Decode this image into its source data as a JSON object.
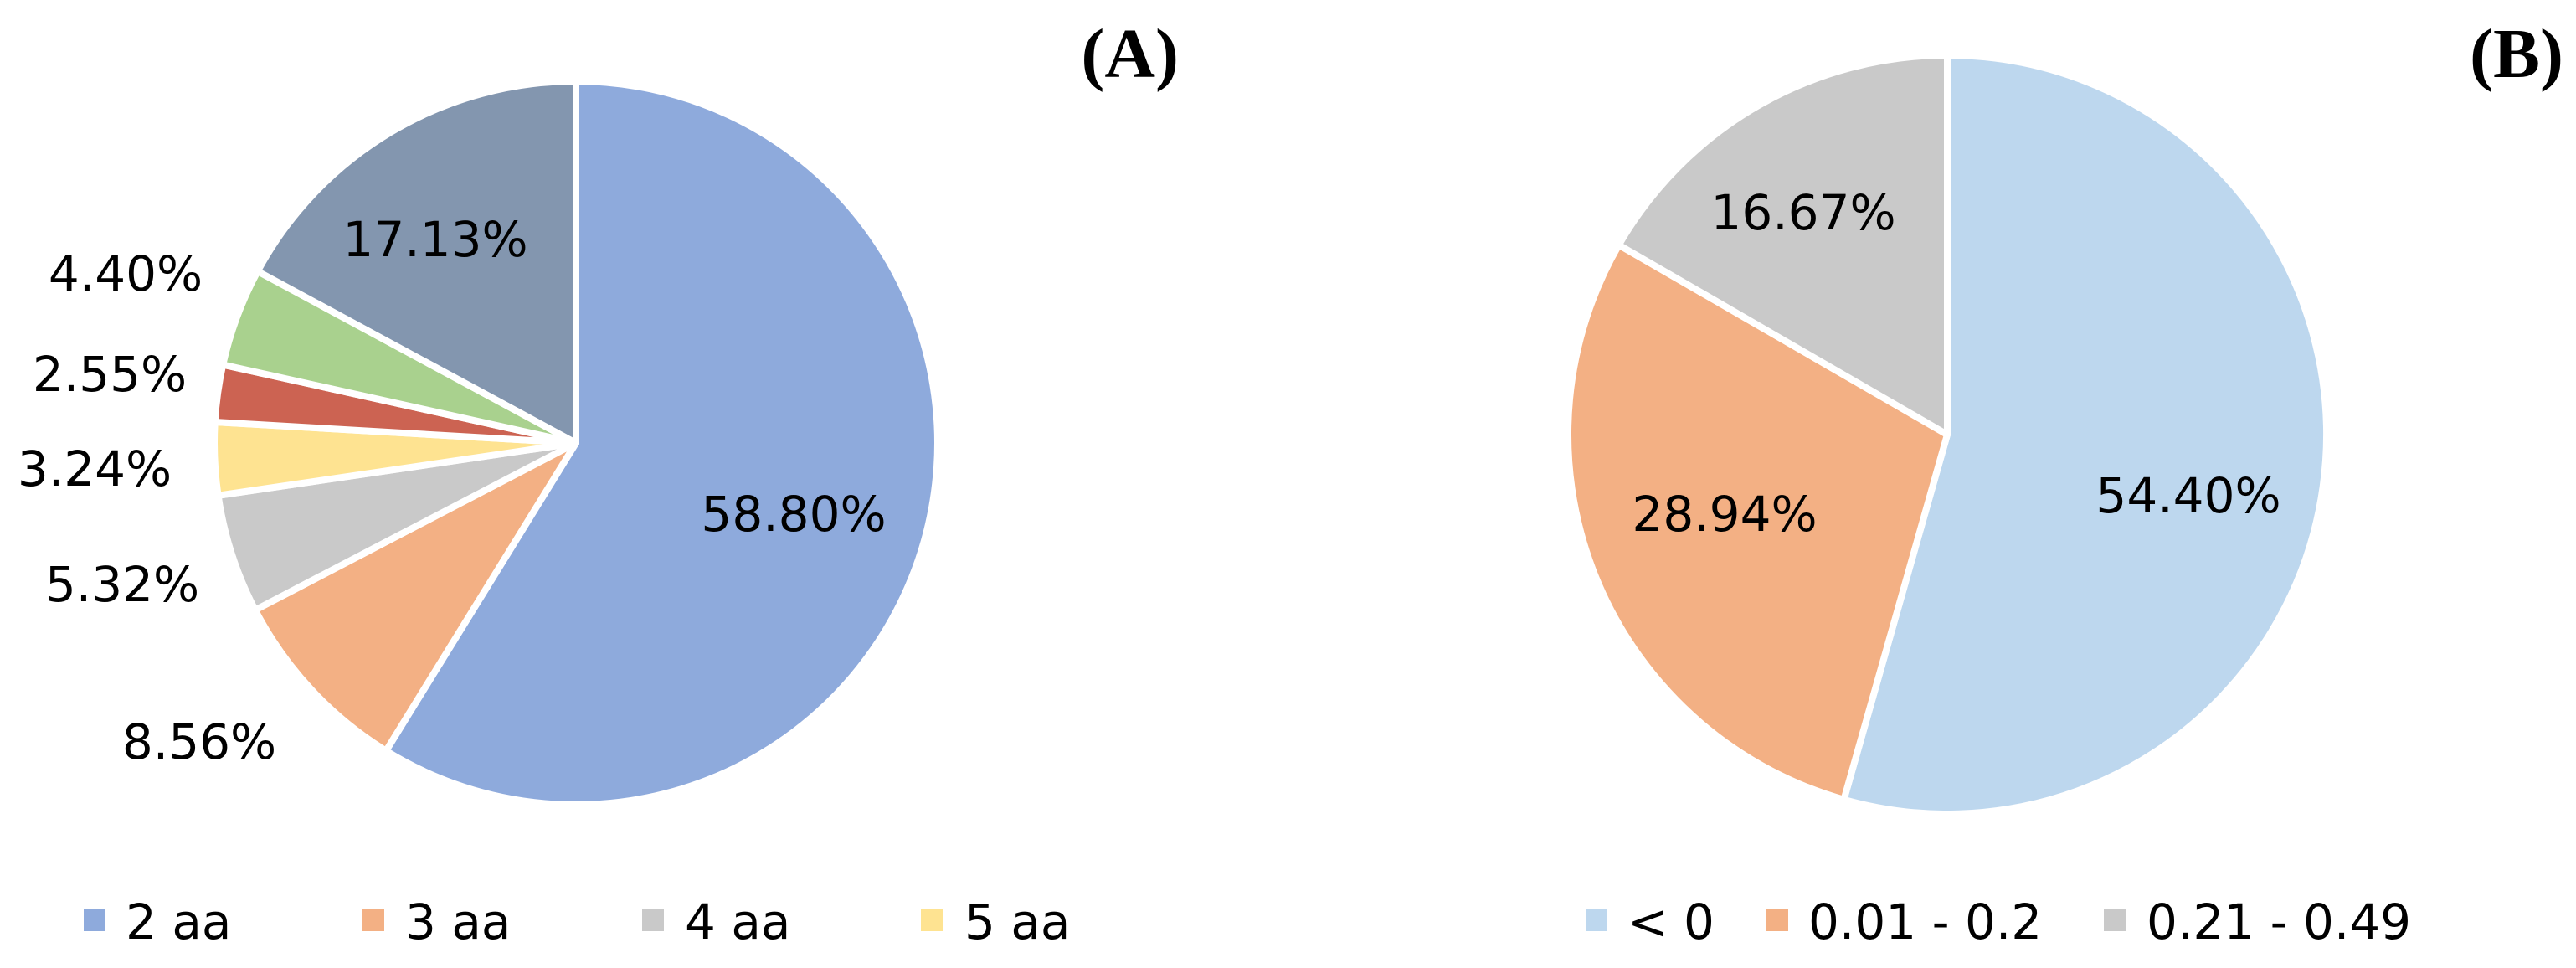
{
  "chart_data": [
    {
      "type": "pie",
      "panel_label": "(A)",
      "categories": [
        "2 aa",
        "3 aa",
        "4 aa",
        "5 aa",
        "",
        "",
        ""
      ],
      "values": [
        58.8,
        8.56,
        5.32,
        3.24,
        2.55,
        4.4,
        17.13
      ],
      "data_labels": [
        "58.80%",
        "8.56%",
        "5.32%",
        "3.24%",
        "2.55%",
        "4.40%",
        "17.13%"
      ],
      "colors": [
        "#8eaadc",
        "#f3b084",
        "#c9c9c9",
        "#fee391",
        "#cc6352",
        "#a9d18e",
        "#8396af"
      ],
      "legend": {
        "entries": [
          "2 aa",
          "3 aa",
          "4 aa",
          "5 aa"
        ],
        "placement": "bottom"
      }
    },
    {
      "type": "pie",
      "panel_label": "(B)",
      "categories": [
        "< 0",
        "0.01 - 0.2",
        "0.21 - 0.49"
      ],
      "values": [
        54.4,
        28.94,
        16.67
      ],
      "data_labels": [
        "54.40%",
        "28.94%",
        "16.67%"
      ],
      "colors": [
        "#bdd7ee",
        "#f3b084",
        "#c9c9c9"
      ],
      "legend": {
        "entries": [
          "< 0",
          "0.01 - 0.2",
          "0.21 - 0.49"
        ],
        "placement": "bottom"
      }
    }
  ]
}
